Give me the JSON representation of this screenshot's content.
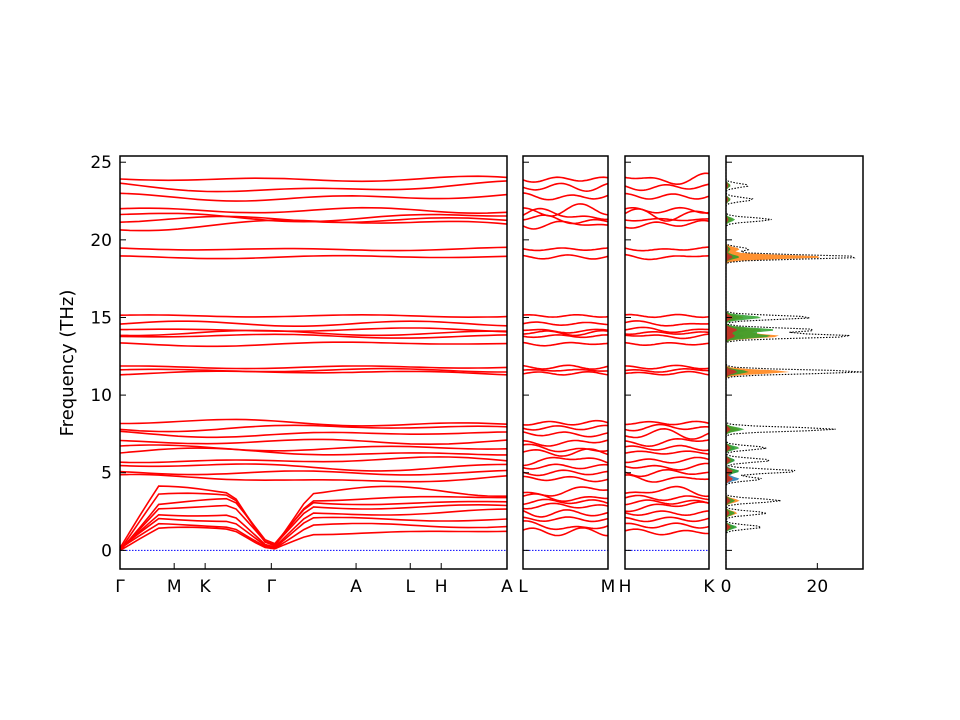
{
  "chart_data": [
    {
      "type": "line",
      "panel": "band-structure",
      "ylabel": "Frequency (THz)",
      "ylim": [
        -1.2,
        25.4
      ],
      "yticks": [
        0,
        5,
        10,
        15,
        20,
        25
      ],
      "segments": [
        {
          "labels": [
            "Γ",
            "M",
            "K",
            "Γ",
            "A",
            "L",
            "H",
            "A"
          ],
          "x": [
            0.0,
            0.14,
            0.22,
            0.391,
            0.61,
            0.75,
            0.83,
            1.0
          ]
        },
        {
          "labels": [
            "L",
            "M"
          ],
          "x": [
            0.0,
            1.0
          ]
        },
        {
          "labels": [
            "H",
            "K"
          ],
          "x": [
            0.0,
            1.0
          ]
        }
      ],
      "acoustic_zero_line": {
        "y": 0,
        "color": "#0000ff"
      },
      "band_color": "#ff0000",
      "flat_bands_thz": [
        1.2,
        1.6,
        2.0,
        2.4,
        2.8,
        3.1,
        3.4,
        3.8,
        4.6,
        5.0,
        5.4,
        5.8,
        6.3,
        6.6,
        7.0,
        7.5,
        7.9,
        8.2,
        11.4,
        11.6,
        11.8,
        13.3,
        13.8,
        14.0,
        14.2,
        14.6,
        15.1,
        18.9,
        19.4,
        21.0,
        21.3,
        21.6,
        21.9,
        22.8,
        23.4,
        23.9
      ]
    },
    {
      "type": "area",
      "panel": "density-of-states",
      "xlim": [
        0,
        30
      ],
      "xticks": [
        0,
        20
      ],
      "total_color": "#000000",
      "species_colors": [
        "#1f77b4",
        "#ff7f0e",
        "#2ca02c",
        "#d62728",
        "#9467bd",
        "#8c564b",
        "#e377c2"
      ],
      "peaks": [
        {
          "f": 1.5,
          "total": 8,
          "parts": [
            2,
            1.5,
            2.5
          ]
        },
        {
          "f": 2.4,
          "total": 9,
          "parts": [
            1.5,
            2.5,
            2
          ]
        },
        {
          "f": 3.2,
          "total": 12,
          "parts": [
            2,
            3,
            2
          ]
        },
        {
          "f": 4.6,
          "total": 8,
          "parts": [
            3,
            1.5,
            1
          ]
        },
        {
          "f": 5.1,
          "total": 16,
          "parts": [
            3,
            2,
            3
          ]
        },
        {
          "f": 5.8,
          "total": 10,
          "parts": [
            2,
            1.5,
            2
          ]
        },
        {
          "f": 6.6,
          "total": 9,
          "parts": [
            2,
            1.5,
            3
          ]
        },
        {
          "f": 7.8,
          "total": 24,
          "parts": [
            2,
            3,
            4
          ]
        },
        {
          "f": 11.5,
          "total": 30,
          "parts": [
            5,
            14,
            5
          ]
        },
        {
          "f": 13.8,
          "total": 28,
          "parts": [
            4,
            12,
            10
          ]
        },
        {
          "f": 14.2,
          "total": 20,
          "parts": [
            5,
            8,
            11
          ]
        },
        {
          "f": 15.0,
          "total": 19,
          "parts": [
            3,
            4,
            8
          ]
        },
        {
          "f": 18.9,
          "total": 30,
          "parts": [
            3,
            22,
            3
          ]
        },
        {
          "f": 19.4,
          "total": 5,
          "parts": [
            1,
            3,
            1
          ]
        },
        {
          "f": 21.3,
          "total": 10,
          "parts": [
            1,
            1.5,
            2
          ]
        },
        {
          "f": 22.6,
          "total": 6,
          "parts": [
            1,
            1,
            1
          ]
        },
        {
          "f": 23.5,
          "total": 5,
          "parts": [
            1,
            1,
            1
          ]
        }
      ]
    }
  ]
}
